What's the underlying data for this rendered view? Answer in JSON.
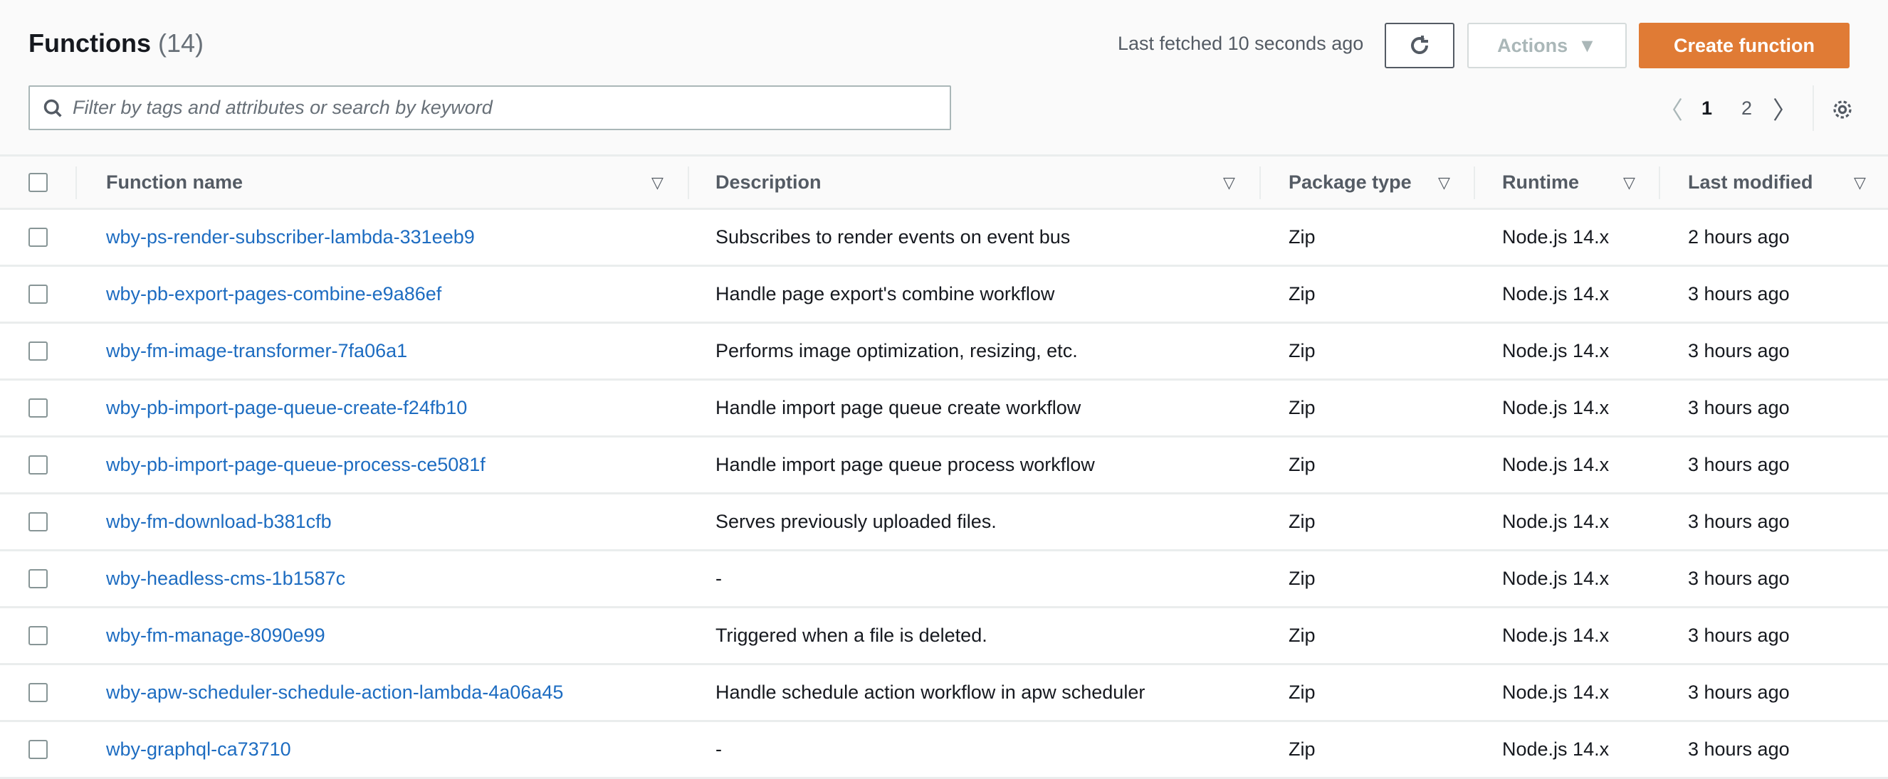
{
  "header": {
    "title": "Functions",
    "count": "(14)",
    "last_fetched": "Last fetched 10 seconds ago",
    "actions_label": "Actions",
    "create_label": "Create function"
  },
  "search": {
    "placeholder": "Filter by tags and attributes or search by keyword",
    "value": ""
  },
  "pagination": {
    "pages": [
      "1",
      "2"
    ],
    "current": "1"
  },
  "columns": [
    "Function name",
    "Description",
    "Package type",
    "Runtime",
    "Last modified"
  ],
  "rows": [
    {
      "name": "wby-ps-render-subscriber-lambda-331eeb9",
      "description": "Subscribes to render events on event bus",
      "package": "Zip",
      "runtime": "Node.js 14.x",
      "modified": "2 hours ago"
    },
    {
      "name": "wby-pb-export-pages-combine-e9a86ef",
      "description": "Handle page export's combine workflow",
      "package": "Zip",
      "runtime": "Node.js 14.x",
      "modified": "3 hours ago"
    },
    {
      "name": "wby-fm-image-transformer-7fa06a1",
      "description": "Performs image optimization, resizing, etc.",
      "package": "Zip",
      "runtime": "Node.js 14.x",
      "modified": "3 hours ago"
    },
    {
      "name": "wby-pb-import-page-queue-create-f24fb10",
      "description": "Handle import page queue create workflow",
      "package": "Zip",
      "runtime": "Node.js 14.x",
      "modified": "3 hours ago"
    },
    {
      "name": "wby-pb-import-page-queue-process-ce5081f",
      "description": "Handle import page queue process workflow",
      "package": "Zip",
      "runtime": "Node.js 14.x",
      "modified": "3 hours ago"
    },
    {
      "name": "wby-fm-download-b381cfb",
      "description": "Serves previously uploaded files.",
      "package": "Zip",
      "runtime": "Node.js 14.x",
      "modified": "3 hours ago"
    },
    {
      "name": "wby-headless-cms-1b1587c",
      "description": "-",
      "package": "Zip",
      "runtime": "Node.js 14.x",
      "modified": "3 hours ago"
    },
    {
      "name": "wby-fm-manage-8090e99",
      "description": "Triggered when a file is deleted.",
      "package": "Zip",
      "runtime": "Node.js 14.x",
      "modified": "3 hours ago"
    },
    {
      "name": "wby-apw-scheduler-schedule-action-lambda-4a06a45",
      "description": "Handle schedule action workflow in apw scheduler",
      "package": "Zip",
      "runtime": "Node.js 14.x",
      "modified": "3 hours ago"
    },
    {
      "name": "wby-graphql-ca73710",
      "description": "-",
      "package": "Zip",
      "runtime": "Node.js 14.x",
      "modified": "3 hours ago"
    }
  ],
  "colors": {
    "primary": "#e07b35",
    "link": "#1d6cc1"
  }
}
